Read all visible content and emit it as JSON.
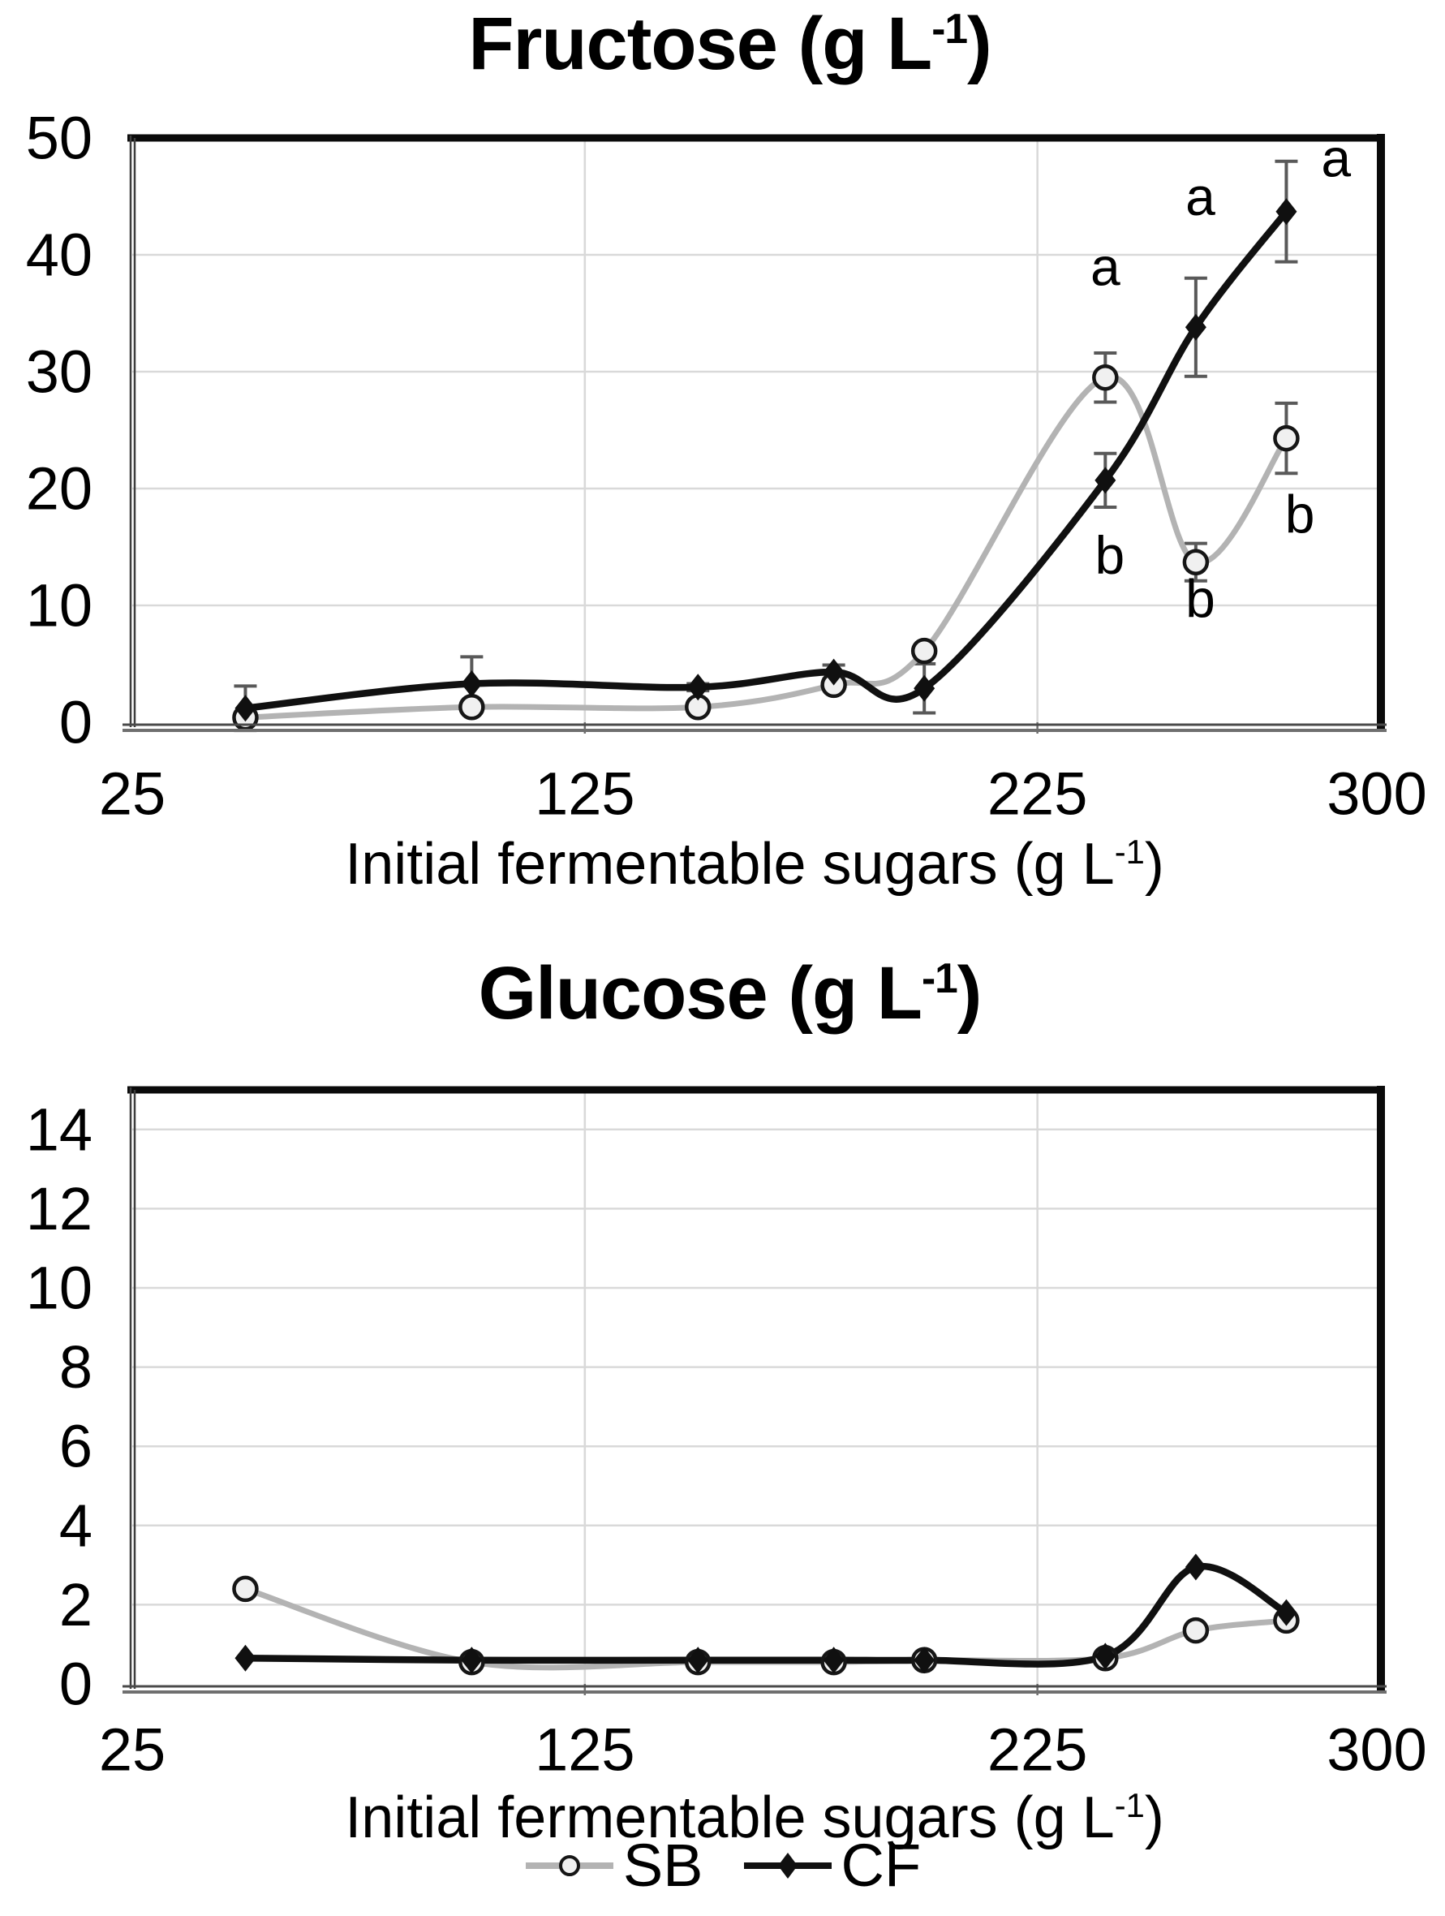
{
  "chart_data": [
    {
      "type": "line",
      "title": "Fructose (g L-1)",
      "title_parts": {
        "main": "Fructose",
        "unit": "(g L",
        "sup": "-1",
        "close": ")"
      },
      "xlabel": "Initial fermentable sugars (g L-1)",
      "xlabel_parts": {
        "main": "Initial fermentable sugars (g L",
        "sup": "-1",
        "close": ")"
      },
      "ylabel": "",
      "xlim": [
        25,
        300
      ],
      "xticks": [
        25,
        125,
        225,
        300
      ],
      "x_gridlines": [
        125,
        225
      ],
      "ylim": [
        0,
        50
      ],
      "yticks": [
        0,
        10,
        20,
        30,
        40,
        50
      ],
      "grid": "horizontal-and-vertical",
      "legend_position": "none",
      "x": [
        50,
        100,
        150,
        180,
        200,
        240,
        260,
        280
      ],
      "series": [
        {
          "name": "SB",
          "values": [
            0.4,
            1.3,
            1.3,
            3.2,
            6.1,
            29.5,
            13.7,
            24.3
          ],
          "errors": [
            0,
            0,
            0,
            0,
            0,
            2.1,
            1.6,
            3.0
          ]
        },
        {
          "name": "CF",
          "values": [
            1.2,
            3.3,
            3.0,
            4.3,
            2.9,
            20.7,
            33.8,
            43.7
          ],
          "errors": [
            1.9,
            2.3,
            0.3,
            0.6,
            2.1,
            2.3,
            4.2,
            4.3
          ]
        }
      ],
      "annotations": [
        {
          "x": 240,
          "y": 39.0,
          "text": "a"
        },
        {
          "x": 261,
          "y": 45.0,
          "text": "a"
        },
        {
          "x": 291,
          "y": 48.3,
          "text": "a"
        },
        {
          "x": 241,
          "y": 14.3,
          "text": "b"
        },
        {
          "x": 261,
          "y": 10.6,
          "text": "b"
        },
        {
          "x": 283,
          "y": 17.8,
          "text": "b"
        }
      ]
    },
    {
      "type": "line",
      "title": "Glucose (g L-1)",
      "title_parts": {
        "main": "Glucose",
        "unit": "(g L",
        "sup": "-1",
        "close": ")"
      },
      "xlabel": "Initial fermentable sugars (g L-1)",
      "xlabel_parts": {
        "main": "Initial fermentable sugars (g L",
        "sup": "-1",
        "close": ")"
      },
      "ylabel": "",
      "xlim": [
        25,
        300
      ],
      "xticks": [
        25,
        125,
        225,
        300
      ],
      "x_gridlines": [
        125,
        225
      ],
      "ylim": [
        0,
        15
      ],
      "yticks": [
        0,
        2,
        4,
        6,
        8,
        10,
        12,
        14
      ],
      "grid": "horizontal-and-vertical",
      "legend_position": "bottom",
      "x": [
        50,
        100,
        150,
        180,
        200,
        240,
        260,
        280
      ],
      "series": [
        {
          "name": "SB",
          "values": [
            2.4,
            0.55,
            0.55,
            0.55,
            0.6,
            0.65,
            1.35,
            1.6
          ],
          "errors": [
            0,
            0,
            0,
            0,
            0,
            0,
            0,
            0
          ]
        },
        {
          "name": "CF",
          "values": [
            0.65,
            0.6,
            0.6,
            0.6,
            0.6,
            0.7,
            2.95,
            1.8
          ],
          "errors": [
            0,
            0,
            0,
            0,
            0,
            0,
            0,
            0
          ]
        }
      ],
      "annotations": []
    }
  ],
  "legend": [
    {
      "label": "SB",
      "marker": "open-circle-gray-line"
    },
    {
      "label": "CF",
      "marker": "filled-diamond-black-line"
    }
  ],
  "colors": {
    "sb_line": "#b3b3b3",
    "sb_marker_fill": "#f0f0f0",
    "sb_marker_stroke": "#161616",
    "cf_line": "#101010",
    "error_bar": "#595959",
    "gridline": "#d9d9d9",
    "border_black": "#0a0a0a",
    "border_gray": "#6f6f6f",
    "text": "#000000"
  }
}
